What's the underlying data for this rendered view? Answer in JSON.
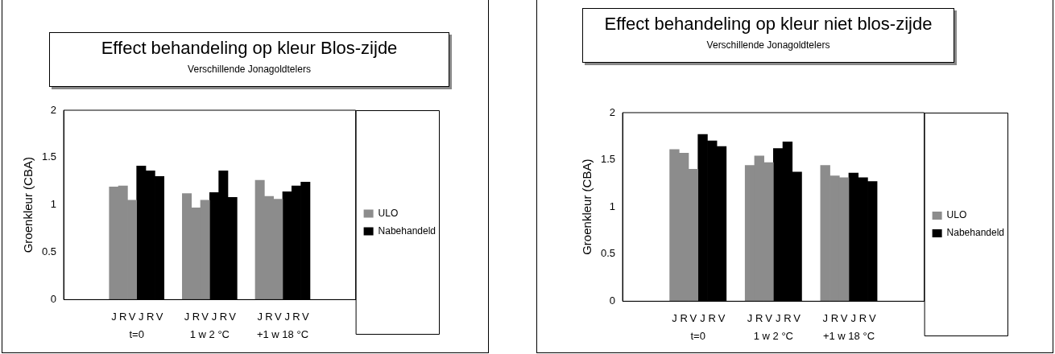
{
  "chart_data": [
    {
      "type": "bar",
      "title": "Effect behandeling op kleur Blos-zijde",
      "subtitle": "Verschillende Jonagoldtelers",
      "ylabel": "Groenkleur (CBA)",
      "categories": [
        null,
        null,
        null,
        null,
        null,
        "J",
        "R",
        "V",
        "J",
        "R",
        "V",
        null,
        null,
        "J",
        "R",
        "V",
        "J",
        "R",
        "V",
        null,
        null,
        "J",
        "R",
        "V",
        "J",
        "R",
        "V",
        null,
        null,
        null,
        null,
        null
      ],
      "series": [
        {
          "name": "ULO",
          "color": "#8c8c8c",
          "values": [
            null,
            null,
            null,
            null,
            null,
            1.19,
            1.2,
            1.05,
            null,
            null,
            null,
            null,
            null,
            1.12,
            0.97,
            1.05,
            null,
            null,
            null,
            null,
            null,
            1.26,
            1.09,
            1.06,
            null,
            null,
            null,
            null,
            null,
            null,
            null,
            null
          ]
        },
        {
          "name": "Nabehandeld",
          "color": "#000000",
          "values": [
            null,
            null,
            null,
            null,
            null,
            null,
            null,
            null,
            1.41,
            1.36,
            1.3,
            null,
            null,
            null,
            null,
            null,
            1.13,
            1.36,
            1.08,
            null,
            null,
            null,
            null,
            null,
            1.14,
            1.2,
            1.24,
            null,
            null,
            null,
            null,
            null
          ]
        }
      ],
      "ylim": [
        0,
        2
      ],
      "yticks": [
        0,
        0.5,
        1,
        1.5,
        2
      ],
      "legend": "right",
      "annotations": [
        "t=0",
        "1 w 2 °C",
        "+1 w 18 °C"
      ]
    },
    {
      "type": "bar",
      "title": "Effect behandeling op kleur niet blos-zijde",
      "subtitle": "Verschillende Jonagoldtelers",
      "ylabel": "Groenkleur (CBA)",
      "categories": [
        null,
        null,
        null,
        null,
        null,
        "J",
        "R",
        "V",
        "J",
        "R",
        "V",
        null,
        null,
        "J",
        "R",
        "V",
        "J",
        "R",
        "V",
        null,
        null,
        "J",
        "R",
        "V",
        "J",
        "R",
        "V",
        null,
        null,
        null,
        null,
        null
      ],
      "series": [
        {
          "name": "ULO",
          "color": "#8c8c8c",
          "values": [
            null,
            null,
            null,
            null,
            null,
            1.61,
            1.57,
            1.4,
            null,
            null,
            null,
            null,
            null,
            1.44,
            1.54,
            1.47,
            null,
            null,
            null,
            null,
            null,
            1.44,
            1.33,
            1.31,
            null,
            null,
            null,
            null,
            null,
            null,
            null,
            null
          ]
        },
        {
          "name": "Nabehandeld",
          "color": "#000000",
          "values": [
            null,
            null,
            null,
            null,
            null,
            null,
            null,
            null,
            1.77,
            1.7,
            1.64,
            null,
            null,
            null,
            null,
            null,
            1.62,
            1.69,
            1.37,
            null,
            null,
            null,
            null,
            null,
            1.36,
            1.31,
            1.27,
            null,
            null,
            null,
            null,
            null
          ]
        }
      ],
      "ylim": [
        0,
        2
      ],
      "yticks": [
        0,
        0.5,
        1,
        1.5,
        2
      ],
      "legend": "right",
      "annotations": [
        "t=0",
        "1 w 2 °C",
        "+1 w 18 °C"
      ]
    }
  ]
}
